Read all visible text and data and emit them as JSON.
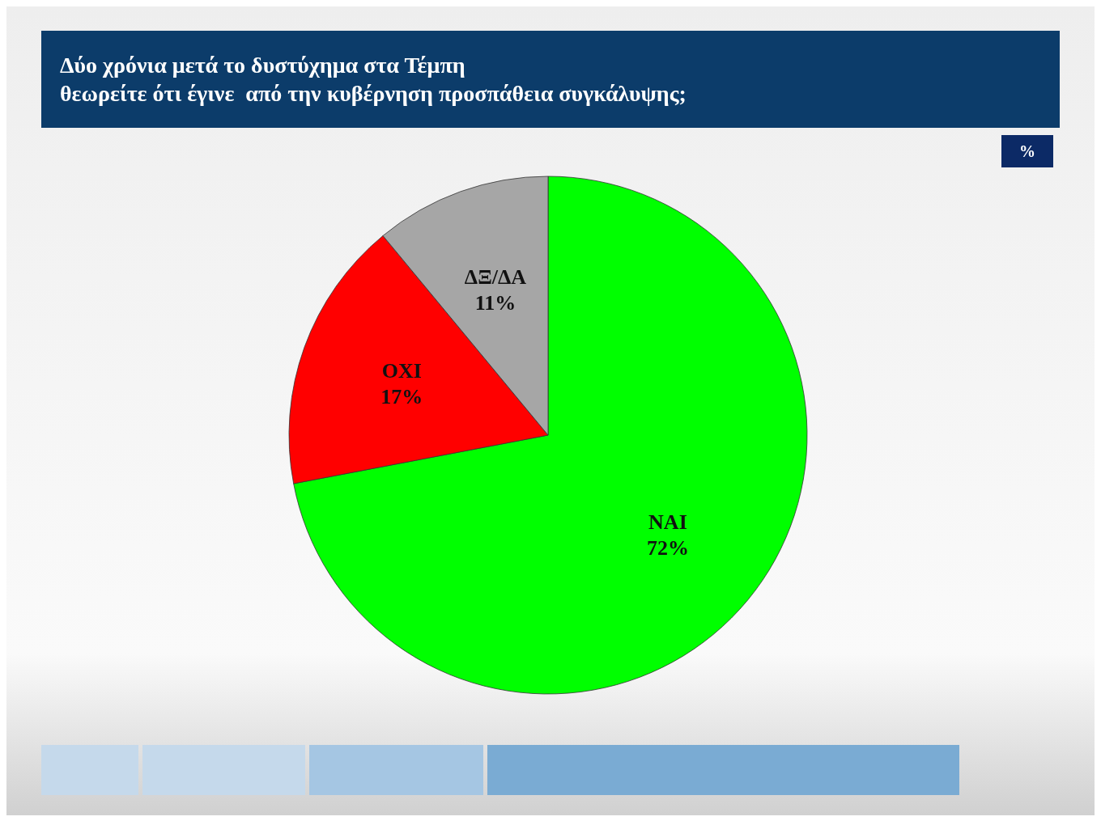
{
  "chart_data": {
    "type": "pie",
    "title": "Δύο χρόνια μετά το δυστύχημα στα Τέμπη\nθεωρείτε ότι έγινε  από την κυβέρνηση προσπάθεια συγκάλυψης;",
    "categories": [
      "ΝΑΙ",
      "ΟΧΙ",
      "ΔΞ/ΔΑ"
    ],
    "values": [
      72,
      17,
      11
    ],
    "colors": [
      "#00ff00",
      "#ff0000",
      "#a6a6a6"
    ],
    "value_labels": [
      "72%",
      "17%",
      "11%"
    ],
    "annotations": [
      "%"
    ]
  }
}
